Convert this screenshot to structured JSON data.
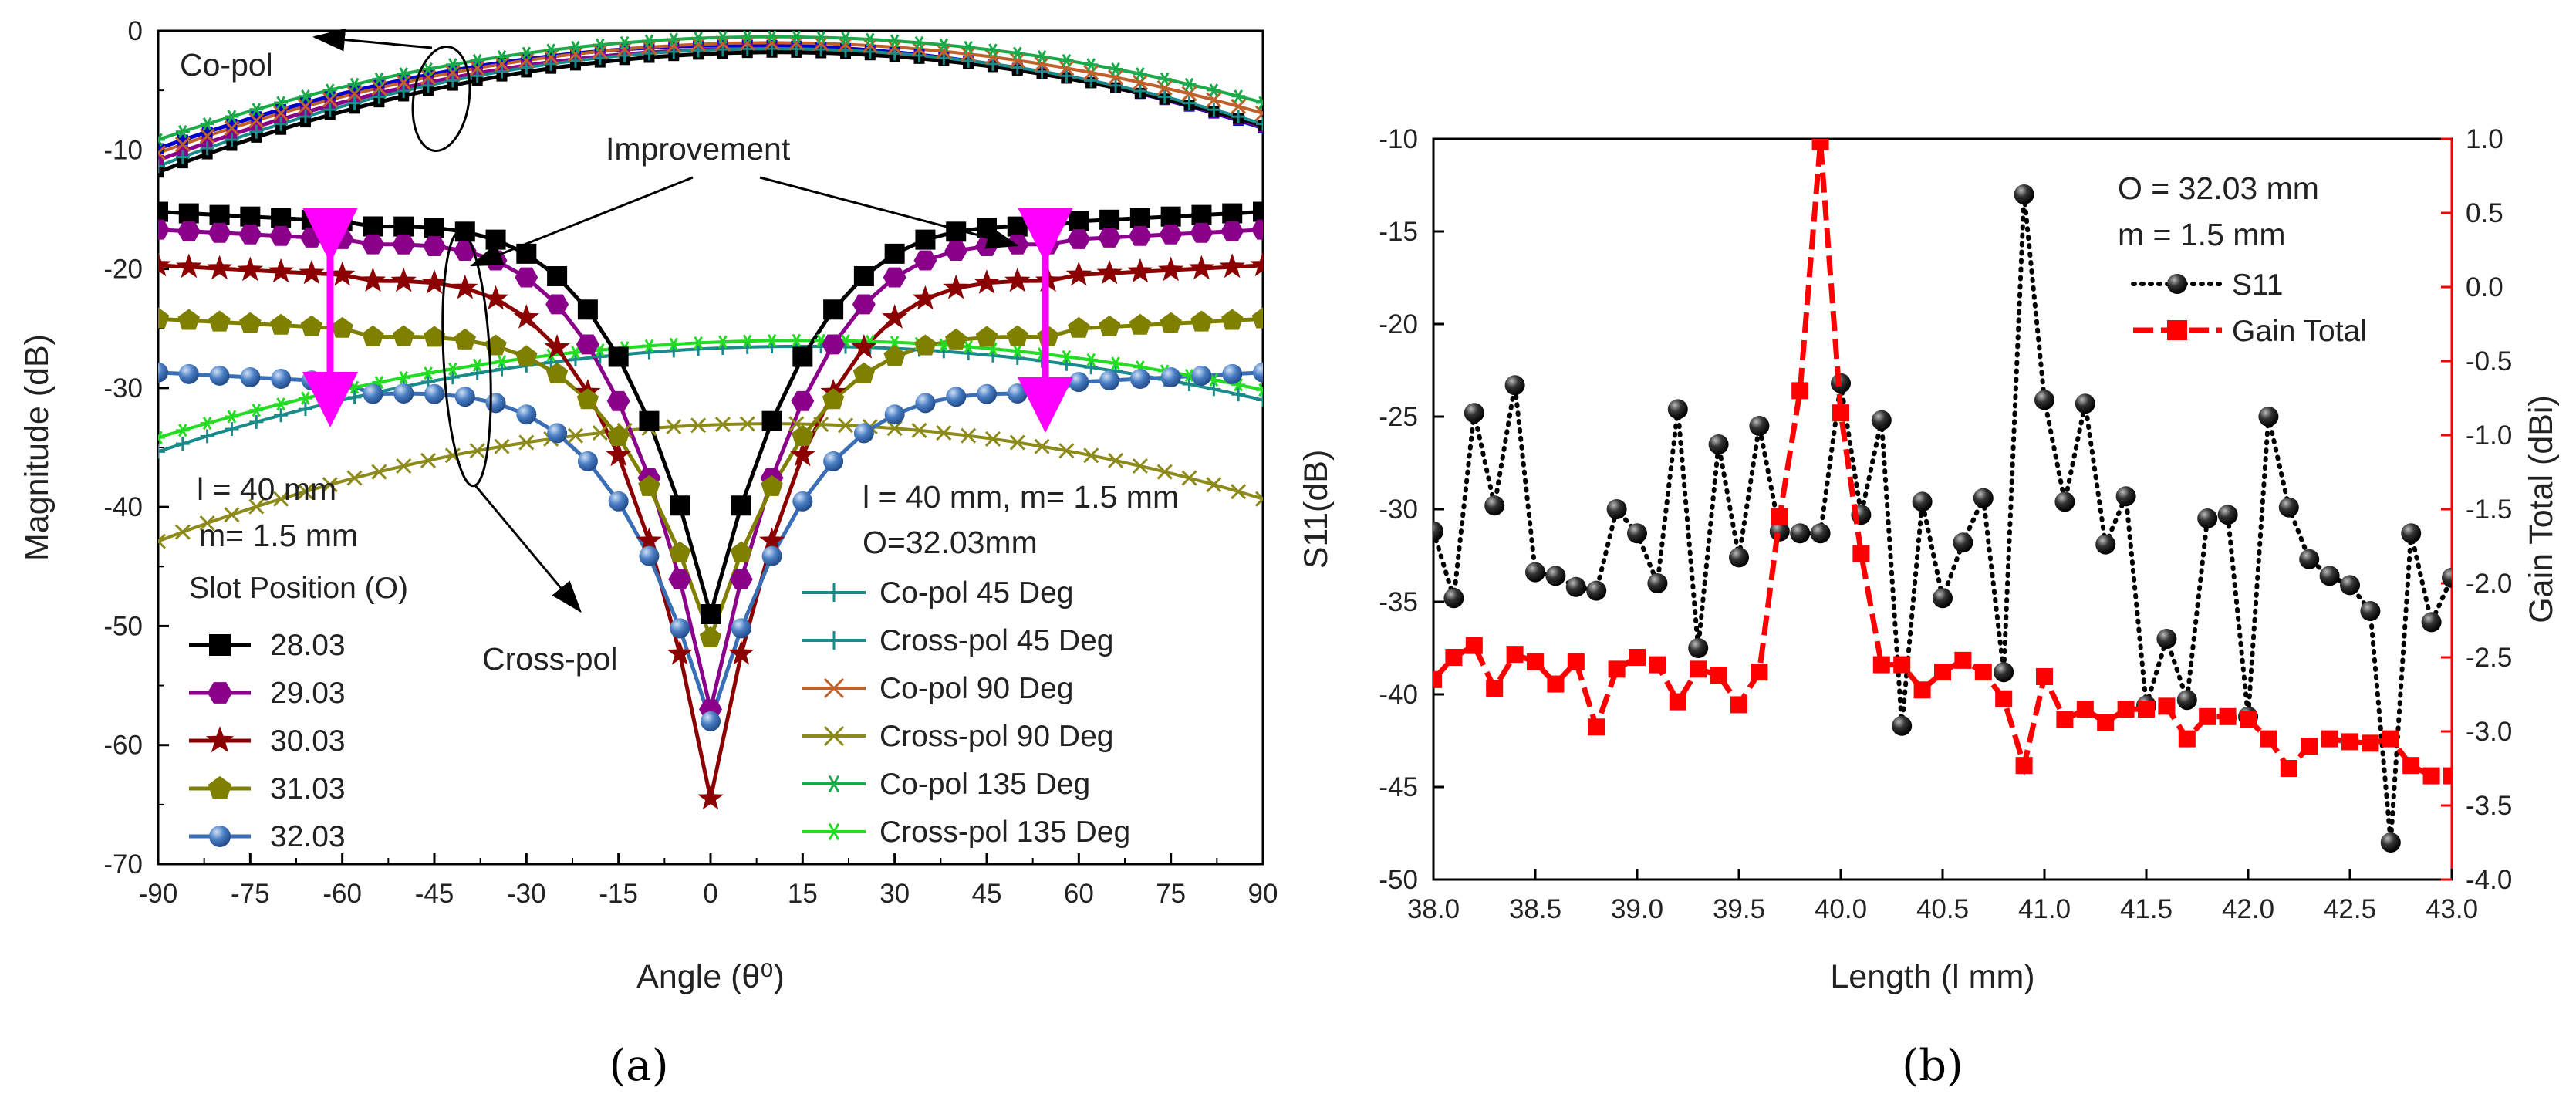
{
  "chart_data": [
    {
      "panel": "(a)",
      "type": "line",
      "xlabel": "Angle (θ⁰)",
      "ylabel": "Magnitude (dB)",
      "xlim": [
        -90,
        90
      ],
      "ylim": [
        -70,
        0
      ],
      "xticks": [
        "-90",
        "-75",
        "-60",
        "-45",
        "-30",
        "-15",
        "0",
        "15",
        "30",
        "45",
        "60",
        "75",
        "90"
      ],
      "yticks": [
        "0",
        "-10",
        "-20",
        "-30",
        "-40",
        "-50",
        "-60",
        "-70"
      ],
      "annotations": {
        "copol": "Co-pol",
        "improvement": "Improvement",
        "crosspol": "Cross-pol",
        "params_left_1": "l = 40 mm",
        "params_left_2": "m= 1.5 mm",
        "params_right_1": "l = 40 mm, m= 1.5 mm",
        "params_right_2": "O=32.03mm"
      },
      "legend_left_title": "Slot Position (O)",
      "slot_series": [
        {
          "name": "28.03",
          "color": "#000000",
          "marker": "square",
          "edge": -16,
          "min": -49,
          "shoulder": 3
        },
        {
          "name": "29.03",
          "color": "#8B008B",
          "marker": "hexagon",
          "edge": -17.5,
          "min": -57,
          "shoulder": 3
        },
        {
          "name": "30.03",
          "color": "#8B0000",
          "marker": "star",
          "edge": -20.5,
          "min": -64.5,
          "shoulder": 3.5
        },
        {
          "name": "31.03",
          "color": "#808000",
          "marker": "pentagon",
          "edge": -25,
          "min": -51,
          "shoulder": 5
        },
        {
          "name": "32.03",
          "color": "#3A6EB5",
          "marker": "circle",
          "edge": -29.5,
          "min": -58,
          "shoulder": 7
        }
      ],
      "pattern_series": [
        {
          "name": "Co-pol 45 Deg",
          "color": "#1A8A8A",
          "marker": "plus",
          "kind": "co",
          "peak": -1.5,
          "edge": -9.5
        },
        {
          "name": "Cross-pol 45 Deg",
          "color": "#1A8A8A",
          "marker": "plus",
          "kind": "cross",
          "peak": -26.5,
          "edge": -33
        },
        {
          "name": "Co-pol 90 Deg",
          "color": "#C0602A",
          "marker": "x",
          "kind": "co",
          "peak": -1,
          "edge": -8.5
        },
        {
          "name": "Cross-pol 90 Deg",
          "color": "#8C8A1A",
          "marker": "x",
          "kind": "cross",
          "peak": -33,
          "edge": -41
        },
        {
          "name": "Co-pol 135 Deg",
          "color": "#1AAA4A",
          "marker": "star6",
          "kind": "co",
          "peak": -0.5,
          "edge": -7.5
        },
        {
          "name": "Cross-pol 135 Deg",
          "color": "#22DD22",
          "marker": "star6",
          "kind": "cross",
          "peak": -26,
          "edge": -32
        }
      ],
      "extra_copol_colors": [
        "#0000CC",
        "#8B008B",
        "#000000"
      ]
    },
    {
      "panel": "(b)",
      "type": "line",
      "xlabel": "Length (l mm)",
      "ylabel_left": "S11(dB)",
      "ylabel_right": "Gain Total (dBi)",
      "xlim": [
        38.0,
        43.0
      ],
      "ylim_left": [
        -50,
        -10
      ],
      "ylim_right": [
        -4.0,
        1.0
      ],
      "xticks": [
        "38.0",
        "38.5",
        "39.0",
        "39.5",
        "40.0",
        "40.5",
        "41.0",
        "41.5",
        "42.0",
        "42.5",
        "43.0"
      ],
      "yticks_left": [
        "-10",
        "-15",
        "-20",
        "-25",
        "-30",
        "-35",
        "-40",
        "-45",
        "-50"
      ],
      "yticks_right": [
        "1.0",
        "0.5",
        "0.0",
        "-0.5",
        "-1.0",
        "-1.5",
        "-2.0",
        "-2.5",
        "-3.0",
        "-3.5",
        "-4.0"
      ],
      "annotations": {
        "line1": "O = 32.03 mm",
        "line2": "m = 1.5 mm"
      },
      "x": [
        38.0,
        38.1,
        38.2,
        38.3,
        38.4,
        38.5,
        38.6,
        38.7,
        38.8,
        38.9,
        39.0,
        39.1,
        39.2,
        39.3,
        39.4,
        39.5,
        39.6,
        39.7,
        39.8,
        39.9,
        40.0,
        40.1,
        40.2,
        40.3,
        40.4,
        40.5,
        40.6,
        40.7,
        40.8,
        40.9,
        41.0,
        41.1,
        41.2,
        41.3,
        41.4,
        41.5,
        41.6,
        41.7,
        41.8,
        41.9,
        42.0,
        42.1,
        42.2,
        42.3,
        42.4,
        42.5,
        42.6,
        42.7,
        42.8,
        42.9,
        43.0
      ],
      "series": [
        {
          "name": "S11",
          "color": "#000000",
          "axis": "left",
          "style": "dotted",
          "marker": "sphere",
          "values": [
            -31.2,
            -34.8,
            -24.8,
            -29.8,
            -23.3,
            -33.4,
            -33.6,
            -34.2,
            -34.4,
            -30.0,
            -31.3,
            -34.0,
            -24.6,
            -37.5,
            -26.5,
            -32.6,
            -25.5,
            -31.2,
            -31.3,
            -31.3,
            -23.2,
            -30.3,
            -25.2,
            -41.7,
            -29.6,
            -34.8,
            -31.8,
            -29.4,
            -38.8,
            -13.0,
            -24.1,
            -29.6,
            -24.3,
            -31.9,
            -29.3,
            -40.6,
            -37.0,
            -40.3,
            -30.5,
            -30.3,
            -41.2,
            -25.0,
            -29.9,
            -32.7,
            -33.6,
            -34.1,
            -35.5,
            -48.0,
            -31.3,
            -36.1,
            -33.7
          ]
        },
        {
          "name": "Gain Total",
          "color": "#FF0000",
          "axis": "right",
          "style": "dashed",
          "marker": "square",
          "values": [
            -2.65,
            -2.5,
            -2.42,
            -2.71,
            -2.48,
            -2.53,
            -2.68,
            -2.53,
            -2.97,
            -2.58,
            -2.5,
            -2.55,
            -2.8,
            -2.58,
            -2.62,
            -2.82,
            -2.6,
            -1.55,
            -0.7,
            0.98,
            -0.85,
            -1.8,
            -2.55,
            -2.55,
            -2.72,
            -2.6,
            -2.52,
            -2.6,
            -2.78,
            -3.23,
            -2.63,
            -2.92,
            -2.85,
            -2.94,
            -2.85,
            -2.85,
            -2.83,
            -3.05,
            -2.9,
            -2.9,
            -2.92,
            -3.05,
            -3.25,
            -3.1,
            -3.05,
            -3.07,
            -3.08,
            -3.05,
            -3.23,
            -3.3,
            -3.3
          ]
        }
      ]
    }
  ]
}
